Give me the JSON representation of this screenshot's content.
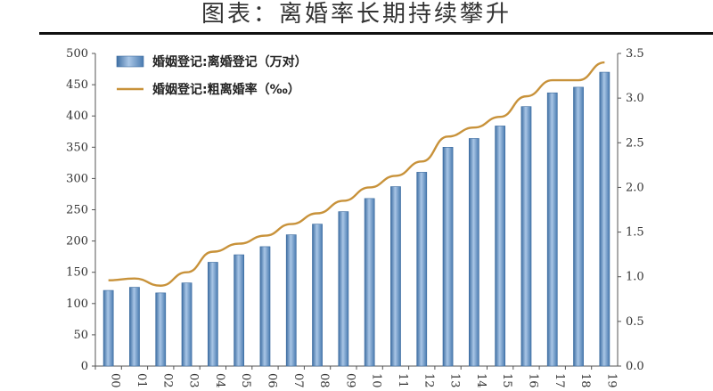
{
  "page": {
    "title": "图表：离婚率长期持续攀升"
  },
  "chart_data": {
    "type": "bar",
    "categories": [
      "00",
      "01",
      "02",
      "03",
      "04",
      "05",
      "06",
      "07",
      "08",
      "09",
      "10",
      "11",
      "12",
      "13",
      "14",
      "15",
      "16",
      "17",
      "18",
      "19"
    ],
    "series": [
      {
        "name": "婚姻登记:离婚登记（万对）",
        "type": "bar",
        "axis": "left",
        "color": "#5b8fc4",
        "values": [
          121,
          126,
          117,
          133,
          166,
          178,
          191,
          210,
          227,
          247,
          268,
          287,
          310,
          350,
          364,
          384,
          415,
          437,
          446,
          470
        ]
      },
      {
        "name": "婚姻登记:粗离婚率（‰）",
        "type": "line",
        "axis": "right",
        "color": "#c8923a",
        "values": [
          0.96,
          0.98,
          0.9,
          1.05,
          1.28,
          1.37,
          1.46,
          1.59,
          1.71,
          1.85,
          2.0,
          2.13,
          2.29,
          2.57,
          2.67,
          2.79,
          3.02,
          3.2,
          3.2,
          3.4
        ]
      }
    ],
    "y_left": {
      "min": 0,
      "max": 500,
      "ticks": [
        "0",
        "50",
        "100",
        "150",
        "200",
        "250",
        "300",
        "350",
        "400",
        "450",
        "500"
      ]
    },
    "y_right": {
      "min": 0,
      "max": 3.5,
      "ticks": [
        "0.0",
        "0.5",
        "1.0",
        "1.5",
        "2.0",
        "2.5",
        "3.0",
        "3.5"
      ]
    },
    "legend": "top-left",
    "grid": false
  }
}
